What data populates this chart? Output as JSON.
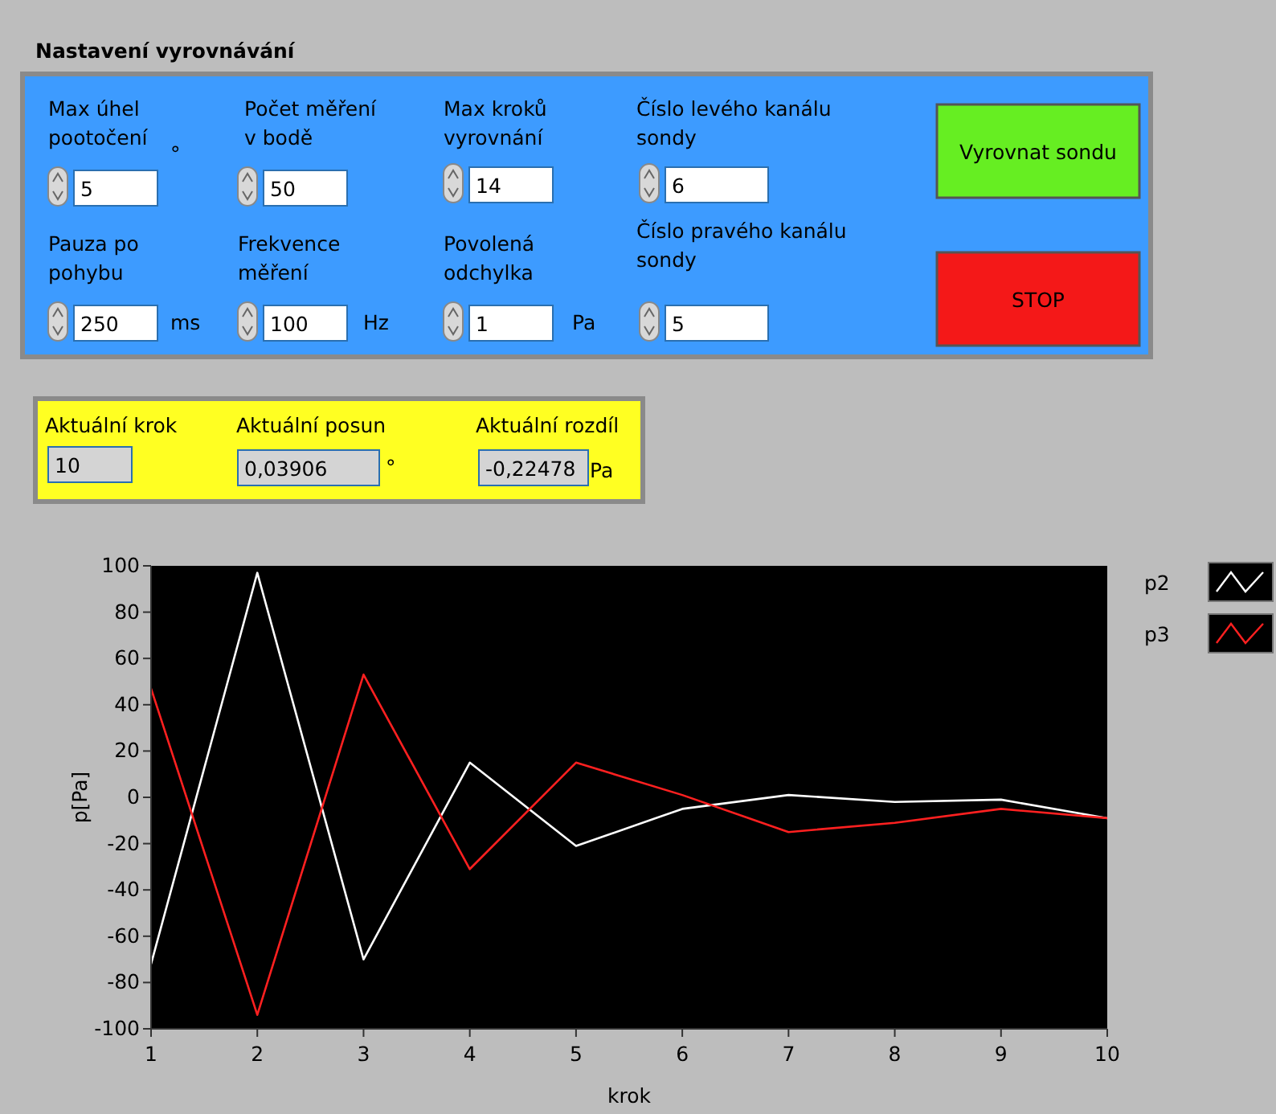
{
  "chart_data": [
    {
      "type": "other",
      "title": "Nastavení vyrovnávání",
      "annotations": [
        "Max úhel\npootočení",
        "5",
        "°",
        "Počet měření\nv bodě",
        "50",
        "Max kroků\nvyrovnání",
        "14",
        "Číslo levého kanálu\nsondy",
        "6",
        "Pauza po\npohybu",
        "250",
        "ms",
        "Frekvence\nměření",
        "100",
        "Hz",
        "Povolená\nodchylka",
        "1",
        "Pa",
        "Číslo pravého kanálu\nsondy",
        "5",
        "Vyrovnat sondu",
        "STOP"
      ]
    },
    {
      "type": "other",
      "annotations": [
        "Aktuální krok",
        "10",
        "Aktuální posun",
        "0,03906",
        "°",
        "Aktuální rozdíl",
        "-0,22478",
        "Pa"
      ]
    },
    {
      "type": "line",
      "xlabel": "krok",
      "ylabel": "p[Pa]",
      "x": [
        1,
        2,
        3,
        4,
        5,
        6,
        7,
        8,
        9,
        10
      ],
      "xlim": [
        1,
        10
      ],
      "xticks": [
        1,
        2,
        3,
        4,
        5,
        6,
        7,
        8,
        9,
        10
      ],
      "ylim": [
        -100,
        100
      ],
      "yticks": [
        -100,
        -80,
        -60,
        -40,
        -20,
        0,
        20,
        40,
        60,
        80,
        100
      ],
      "grid": false,
      "legend": "top right",
      "marker": "none",
      "line_style": "solid",
      "series": [
        {
          "name": "p2",
          "color": "#ffffff",
          "values": [
            -72,
            97,
            -70,
            15,
            -21,
            -5,
            1,
            -2,
            -1,
            -9
          ]
        },
        {
          "name": "p3",
          "color": "#ff2020",
          "values": [
            47,
            -94,
            53,
            -31,
            15,
            1,
            -15,
            -11,
            -5,
            -9
          ]
        }
      ]
    }
  ]
}
